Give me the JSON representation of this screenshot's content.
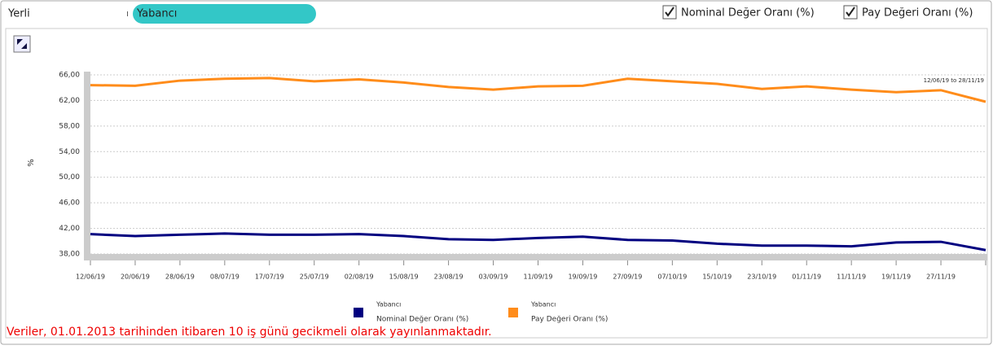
{
  "tabs": [
    "Yerli",
    "Yabancı"
  ],
  "checkboxes": [
    "Nominal Değer Oranı (%)",
    "Pay Değeri Oranı (%)"
  ],
  "footer_note": "Veriler, 01.01.2013 tarihinden itibaren 10 iş günü gecikmeli olarak yayınlanmaktadır.",
  "chart_data": {
    "type": "line",
    "ylabel": "%",
    "annotation": "12/06/19 to 28/11/19",
    "categories": [
      "12/06/19",
      "20/06/19",
      "28/06/19",
      "08/07/19",
      "17/07/19",
      "25/07/19",
      "02/08/19",
      "15/08/19",
      "23/08/19",
      "03/09/19",
      "11/09/19",
      "19/09/19",
      "27/09/19",
      "07/10/19",
      "15/10/19",
      "23/10/19",
      "01/11/19",
      "11/11/19",
      "19/11/19",
      "27/11/19",
      null
    ],
    "series": [
      {
        "group": "Yabancı",
        "name": "Nominal Değer Oranı (%)",
        "color": "#000080",
        "values": [
          41.1,
          40.8,
          41.0,
          41.2,
          41.0,
          41.0,
          41.1,
          40.8,
          40.3,
          40.2,
          40.5,
          40.7,
          40.2,
          40.1,
          39.6,
          39.3,
          39.3,
          39.2,
          39.8,
          39.9,
          38.6
        ]
      },
      {
        "group": "Yabancı",
        "name": "Pay Değeri Oranı (%)",
        "color": "#ff8c1a",
        "values": [
          64.4,
          64.3,
          65.1,
          65.4,
          65.5,
          65.0,
          65.3,
          64.8,
          64.1,
          63.7,
          64.2,
          64.3,
          65.4,
          65.0,
          64.6,
          63.8,
          64.2,
          63.7,
          63.3,
          63.6,
          61.8
        ]
      }
    ],
    "ylim": [
      38,
      66
    ],
    "yticks": [
      {
        "value": 38,
        "label": "38,00"
      },
      {
        "value": 42,
        "label": "42,00"
      },
      {
        "value": 46,
        "label": "46,00"
      },
      {
        "value": 50,
        "label": "50,00"
      },
      {
        "value": 54,
        "label": "54,00"
      },
      {
        "value": 58,
        "label": "58,00"
      },
      {
        "value": 62,
        "label": "62,00"
      },
      {
        "value": 66,
        "label": "66,00"
      }
    ],
    "grid": true
  }
}
